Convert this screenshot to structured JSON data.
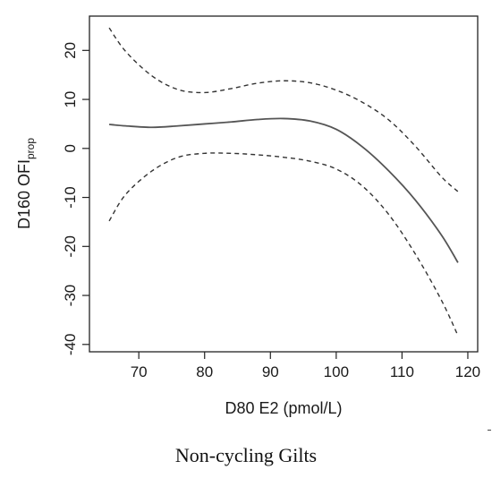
{
  "chart_data": {
    "type": "line",
    "title": "",
    "xlabel": "D80 E2 (pmol/L)",
    "ylabel_main": "D160 OFI",
    "ylabel_sub": "prop",
    "xlim": [
      62.5,
      121.5
    ],
    "ylim": [
      -41.5,
      27
    ],
    "xticks": [
      70,
      80,
      90,
      100,
      110,
      120
    ],
    "yticks": [
      20,
      10,
      0,
      -10,
      -20,
      -30,
      -40
    ],
    "grid": false,
    "legend": "none",
    "series": [
      {
        "style": "solid",
        "x": [
          65.5,
          68,
          72,
          76,
          80,
          84,
          88,
          92,
          96,
          100,
          104,
          108,
          112,
          116,
          118.5
        ],
        "y": [
          4.9,
          4.6,
          4.3,
          4.6,
          5.0,
          5.4,
          5.9,
          6.1,
          5.6,
          3.9,
          0.3,
          -4.6,
          -10.5,
          -17.7,
          -23.3
        ]
      },
      {
        "style": "dashed",
        "x": [
          65.5,
          68,
          72,
          76,
          80,
          84,
          88,
          92,
          96,
          100,
          104,
          108,
          112,
          116,
          118.5
        ],
        "y": [
          24.6,
          19.8,
          14.8,
          12.0,
          11.4,
          12.2,
          13.3,
          13.8,
          13.4,
          11.9,
          9.4,
          5.8,
          0.5,
          -5.8,
          -8.8
        ]
      },
      {
        "style": "dashed",
        "x": [
          65.5,
          68,
          72,
          76,
          80,
          84,
          88,
          92,
          96,
          100,
          104,
          108,
          112,
          116,
          118.5
        ],
        "y": [
          -14.8,
          -9.4,
          -4.6,
          -1.8,
          -1.0,
          -1.0,
          -1.3,
          -1.8,
          -2.6,
          -4.2,
          -7.7,
          -13.5,
          -21.5,
          -31.0,
          -38.2
        ]
      }
    ]
  },
  "caption": "Non-cycling Gilts"
}
